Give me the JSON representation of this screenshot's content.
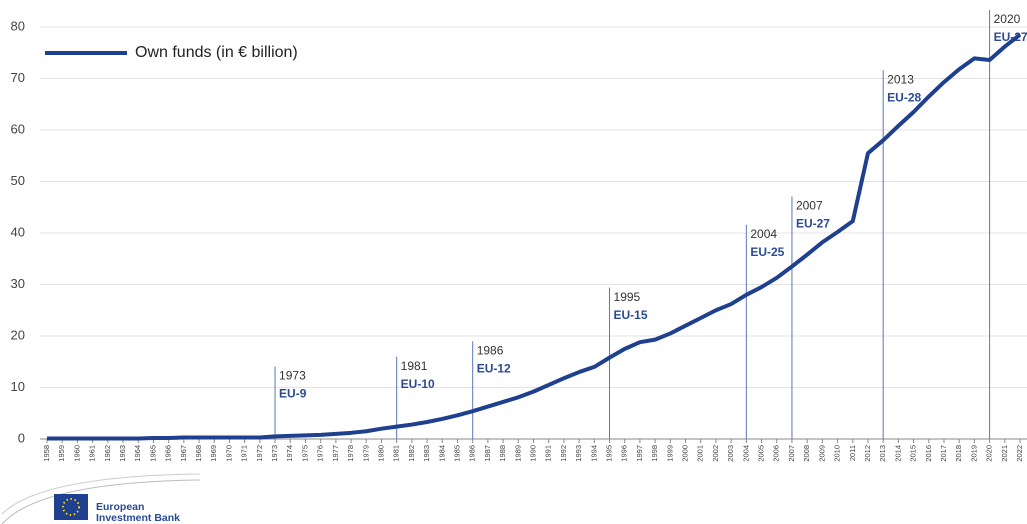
{
  "chart_data": {
    "type": "line",
    "categories": [
      "1958",
      "1959",
      "1960",
      "1961",
      "1962",
      "1963",
      "1964",
      "1965",
      "1966",
      "1967",
      "1968",
      "1969",
      "1970",
      "1971",
      "1972",
      "1973",
      "1974",
      "1975",
      "1976",
      "1977",
      "1978",
      "1979",
      "1980",
      "1981",
      "1982",
      "1983",
      "1984",
      "1985",
      "1986",
      "1987",
      "1988",
      "1989",
      "1990",
      "1991",
      "1992",
      "1993",
      "1994",
      "1995",
      "1996",
      "1997",
      "1998",
      "1999",
      "2000",
      "2001",
      "2002",
      "2003",
      "2004",
      "2005",
      "2006",
      "2007",
      "2008",
      "2009",
      "2010",
      "2011",
      "2012",
      "2013",
      "2014",
      "2015",
      "2016",
      "2017",
      "2018",
      "2019",
      "2020",
      "2021",
      "2022"
    ],
    "series": [
      {
        "name": "Own funds (in € billion)",
        "color": "#1f3f8f",
        "values": [
          0.1,
          0.1,
          0.1,
          0.1,
          0.1,
          0.1,
          0.1,
          0.2,
          0.2,
          0.3,
          0.3,
          0.3,
          0.3,
          0.3,
          0.3,
          0.5,
          0.6,
          0.7,
          0.8,
          1.0,
          1.2,
          1.5,
          2.0,
          2.4,
          2.8,
          3.3,
          3.9,
          4.6,
          5.4,
          6.3,
          7.2,
          8.1,
          9.2,
          10.5,
          11.8,
          13.0,
          14.0,
          15.8,
          17.5,
          18.8,
          19.3,
          20.5,
          22.0,
          23.5,
          25.0,
          26.2,
          28.0,
          29.5,
          31.3,
          33.5,
          35.8,
          38.2,
          40.2,
          42.3,
          55.5,
          58.0,
          60.8,
          63.5,
          66.5,
          69.3,
          71.8,
          73.9,
          73.6,
          76.2,
          78.5
        ]
      }
    ],
    "ylim": [
      0,
      80
    ],
    "yticks": [
      0,
      10,
      20,
      30,
      40,
      50,
      60,
      70,
      80
    ],
    "grid": true,
    "legend": "top-left",
    "annotations": [
      {
        "year": "1973",
        "label": "EU-9"
      },
      {
        "year": "1981",
        "label": "EU-10"
      },
      {
        "year": "1986",
        "label": "EU-12"
      },
      {
        "year": "1995",
        "label": "EU-15"
      },
      {
        "year": "2004",
        "label": "EU-25"
      },
      {
        "year": "2007",
        "label": "EU-27"
      },
      {
        "year": "2013",
        "label": "EU-28"
      },
      {
        "year": "2020",
        "label": "EU-27"
      }
    ]
  },
  "logo": {
    "lines": [
      "European",
      "Investment Bank"
    ]
  }
}
